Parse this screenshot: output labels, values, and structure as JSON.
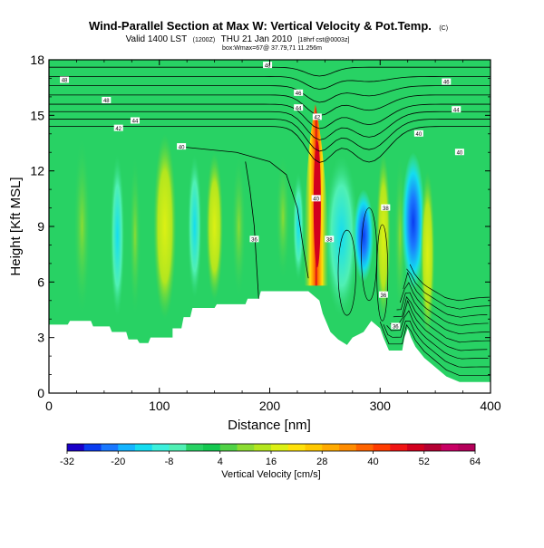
{
  "chart_data": {
    "type": "heatmap",
    "title": "Wind-Parallel Section at Max W: Vertical Velocity & Pot.Temp.",
    "title_mark": "(C)",
    "subtitle": "Valid 1400 LST",
    "subtitle_time": "(1200Z)",
    "subtitle_date": "THU 21 Jan 2010",
    "subtitle_run": "[18hrf cst@0003z]",
    "info_line": "box:Wmax=67@ 37.79,71 11.256m",
    "xlabel": "Distance [nm]",
    "ylabel": "Height [Kft MSL]",
    "xlim": [
      0,
      400
    ],
    "ylim": [
      0,
      18
    ],
    "x_ticks": [
      0,
      100,
      200,
      300,
      400
    ],
    "y_ticks": [
      0,
      3,
      6,
      9,
      12,
      15,
      18
    ],
    "colorbar": {
      "label": "Vertical Velocity [cm/s]",
      "ticks": [
        -32,
        -20,
        -8,
        4,
        16,
        28,
        40,
        52,
        64
      ],
      "levels": [
        -32,
        -28,
        -24,
        -20,
        -16,
        -12,
        -8,
        -4,
        0,
        4,
        8,
        12,
        16,
        20,
        24,
        28,
        32,
        36,
        40,
        44,
        48,
        52,
        56,
        60,
        64
      ],
      "colors": [
        "#1a00c8",
        "#0a3cf0",
        "#1a78ff",
        "#14b4ff",
        "#14dcf0",
        "#3cf0dc",
        "#50f0b4",
        "#28d264",
        "#14c850",
        "#50d246",
        "#8cdc32",
        "#b4e61e",
        "#dcf014",
        "#ffe10a",
        "#ffc800",
        "#ffaa00",
        "#ff8c00",
        "#ff6400",
        "#ff3c00",
        "#f01414",
        "#d2001e",
        "#b40032",
        "#c80064",
        "#b4005a"
      ]
    },
    "velocity_features": [
      {
        "x": 243,
        "y_bottom": 5.8,
        "y_top": 15.6,
        "w_max": 64,
        "sign": "up"
      },
      {
        "x": 188,
        "y_bottom": 4.0,
        "y_top": 13.0,
        "w_max": 16,
        "sign": "up"
      },
      {
        "x": 268,
        "y_bottom": 4.0,
        "y_top": 13.0,
        "w_max": -24,
        "sign": "down"
      },
      {
        "x": 330,
        "y_bottom": 6.0,
        "y_top": 13.0,
        "w_max": -32,
        "sign": "down"
      },
      {
        "x": 303,
        "y_bottom": 4.0,
        "y_top": 13.0,
        "w_max": 16,
        "sign": "up"
      },
      {
        "x": 102,
        "y_bottom": 4.0,
        "y_top": 14.0,
        "w_max": 12,
        "sign": "up"
      }
    ],
    "terrain": [
      {
        "x": 0,
        "h": 3.7
      },
      {
        "x": 17,
        "h": 3.7
      },
      {
        "x": 19,
        "h": 3.9
      },
      {
        "x": 38,
        "h": 3.9
      },
      {
        "x": 40,
        "h": 3.6
      },
      {
        "x": 55,
        "h": 3.6
      },
      {
        "x": 57,
        "h": 3.3
      },
      {
        "x": 70,
        "h": 3.3
      },
      {
        "x": 72,
        "h": 2.9
      },
      {
        "x": 80,
        "h": 2.9
      },
      {
        "x": 82,
        "h": 2.7
      },
      {
        "x": 90,
        "h": 2.7
      },
      {
        "x": 92,
        "h": 3.0
      },
      {
        "x": 112,
        "h": 3.0
      },
      {
        "x": 112,
        "h": 3.5
      },
      {
        "x": 120,
        "h": 3.5
      },
      {
        "x": 122,
        "h": 4.1
      },
      {
        "x": 128,
        "h": 4.1
      },
      {
        "x": 130,
        "h": 4.6
      },
      {
        "x": 150,
        "h": 4.6
      },
      {
        "x": 152,
        "h": 4.8
      },
      {
        "x": 178,
        "h": 4.8
      },
      {
        "x": 180,
        "h": 5.1
      },
      {
        "x": 190,
        "h": 5.1
      },
      {
        "x": 192,
        "h": 5.5
      },
      {
        "x": 235,
        "h": 5.5
      },
      {
        "x": 245,
        "h": 5.0
      },
      {
        "x": 248,
        "h": 4.3
      },
      {
        "x": 255,
        "h": 3.3
      },
      {
        "x": 262,
        "h": 2.9
      },
      {
        "x": 270,
        "h": 2.6
      },
      {
        "x": 275,
        "h": 3.0
      },
      {
        "x": 285,
        "h": 3.3
      },
      {
        "x": 292,
        "h": 3.9
      },
      {
        "x": 300,
        "h": 3.5
      },
      {
        "x": 303,
        "h": 3.0
      },
      {
        "x": 308,
        "h": 2.3
      },
      {
        "x": 320,
        "h": 2.3
      },
      {
        "x": 322,
        "h": 3.0
      },
      {
        "x": 325,
        "h": 3.5
      },
      {
        "x": 328,
        "h": 3.0
      },
      {
        "x": 332,
        "h": 2.5
      },
      {
        "x": 340,
        "h": 1.9
      },
      {
        "x": 350,
        "h": 1.4
      },
      {
        "x": 360,
        "h": 0.9
      },
      {
        "x": 372,
        "h": 0.6
      },
      {
        "x": 390,
        "h": 0.6
      },
      {
        "x": 400,
        "h": 0.6
      }
    ],
    "contour_labels": [
      {
        "text": "48",
        "x": 14,
        "y": 16.9
      },
      {
        "text": "48",
        "x": 52,
        "y": 15.8
      },
      {
        "text": "48",
        "x": 198,
        "y": 17.7
      },
      {
        "text": "46",
        "x": 226,
        "y": 16.2
      },
      {
        "text": "44",
        "x": 226,
        "y": 15.4
      },
      {
        "text": "46",
        "x": 360,
        "y": 16.8
      },
      {
        "text": "44",
        "x": 78,
        "y": 14.7
      },
      {
        "text": "44",
        "x": 369,
        "y": 15.3
      },
      {
        "text": "42",
        "x": 243,
        "y": 14.9
      },
      {
        "text": "42",
        "x": 63,
        "y": 14.3
      },
      {
        "text": "40",
        "x": 120,
        "y": 13.3
      },
      {
        "text": "40",
        "x": 335,
        "y": 14.0
      },
      {
        "text": "40",
        "x": 372,
        "y": 13.0
      },
      {
        "text": "40",
        "x": 242,
        "y": 10.5
      },
      {
        "text": "38",
        "x": 254,
        "y": 8.3
      },
      {
        "text": "38",
        "x": 305,
        "y": 10.0
      },
      {
        "text": "36",
        "x": 186,
        "y": 8.3
      },
      {
        "text": "36",
        "x": 303,
        "y": 5.3
      },
      {
        "text": "36",
        "x": 314,
        "y": 3.6
      }
    ]
  }
}
